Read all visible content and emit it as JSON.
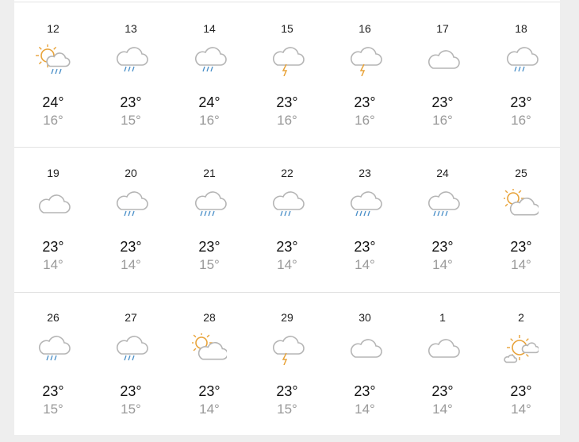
{
  "colors": {
    "sun": "#e8a33a",
    "cloud": "#b5b5b5",
    "rain": "#4a8fc8",
    "bolt": "#e8a33a"
  },
  "rows": [
    [
      {
        "day": "12",
        "icon": "sun-cloud-rain",
        "high": "24°",
        "low": "16°"
      },
      {
        "day": "13",
        "icon": "cloud-rain",
        "high": "23°",
        "low": "15°"
      },
      {
        "day": "14",
        "icon": "cloud-rain",
        "high": "24°",
        "low": "16°"
      },
      {
        "day": "15",
        "icon": "thunderstorm",
        "high": "23°",
        "low": "16°"
      },
      {
        "day": "16",
        "icon": "thunderstorm",
        "high": "23°",
        "low": "16°"
      },
      {
        "day": "17",
        "icon": "cloud",
        "high": "23°",
        "low": "16°"
      },
      {
        "day": "18",
        "icon": "cloud-rain",
        "high": "23°",
        "low": "16°"
      }
    ],
    [
      {
        "day": "19",
        "icon": "cloud",
        "high": "23°",
        "low": "14°"
      },
      {
        "day": "20",
        "icon": "cloud-rain",
        "high": "23°",
        "low": "14°"
      },
      {
        "day": "21",
        "icon": "cloud-heavy-rain",
        "high": "23°",
        "low": "15°"
      },
      {
        "day": "22",
        "icon": "cloud-rain",
        "high": "23°",
        "low": "14°"
      },
      {
        "day": "23",
        "icon": "cloud-heavy-rain",
        "high": "23°",
        "low": "14°"
      },
      {
        "day": "24",
        "icon": "cloud-heavy-rain",
        "high": "23°",
        "low": "14°"
      },
      {
        "day": "25",
        "icon": "sun-behind-cloud",
        "high": "23°",
        "low": "14°"
      }
    ],
    [
      {
        "day": "26",
        "icon": "cloud-rain",
        "high": "23°",
        "low": "15°"
      },
      {
        "day": "27",
        "icon": "cloud-rain",
        "high": "23°",
        "low": "15°"
      },
      {
        "day": "28",
        "icon": "sun-behind-cloud",
        "high": "23°",
        "low": "14°"
      },
      {
        "day": "29",
        "icon": "thunderstorm",
        "high": "23°",
        "low": "15°"
      },
      {
        "day": "30",
        "icon": "cloud",
        "high": "23°",
        "low": "14°"
      },
      {
        "day": "1",
        "icon": "cloud",
        "high": "23°",
        "low": "14°"
      },
      {
        "day": "2",
        "icon": "mostly-sunny",
        "high": "23°",
        "low": "14°"
      }
    ]
  ]
}
